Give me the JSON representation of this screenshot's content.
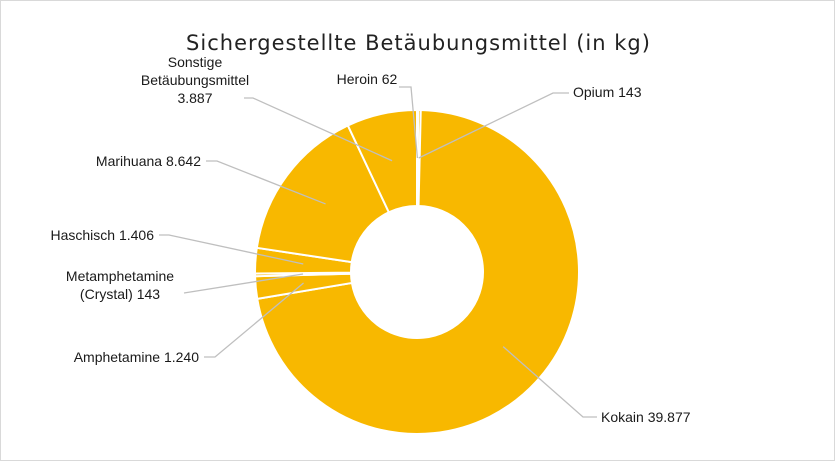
{
  "chart_data": {
    "type": "pie",
    "variant": "donut",
    "title": "Sichergestellte Betäubungsmittel (in kg)",
    "slice_color": "#f8b800",
    "separator_color": "#ffffff",
    "leader_color": "#bfbfbf",
    "slices": [
      {
        "name": "Heroin",
        "value": 62,
        "label_lines": [
          "Heroin 62"
        ]
      },
      {
        "name": "Opium",
        "value": 143,
        "label_lines": [
          "Opium 143"
        ]
      },
      {
        "name": "Kokain",
        "value": 39877,
        "label_lines": [
          "Kokain 39.877"
        ]
      },
      {
        "name": "Amphetamine",
        "value": 1240,
        "label_lines": [
          "Amphetamine 1.240"
        ]
      },
      {
        "name": "Metamphetamine (Crystal)",
        "value": 143,
        "label_lines": [
          "Metamphetamine",
          "(Crystal) 143"
        ]
      },
      {
        "name": "Haschisch",
        "value": 1406,
        "label_lines": [
          "Haschisch 1.406"
        ]
      },
      {
        "name": "Marihuana",
        "value": 8642,
        "label_lines": [
          "Marihuana 8.642"
        ]
      },
      {
        "name": "Sonstige Betäubungsmittel",
        "value": 3887,
        "label_lines": [
          "Sonstige",
          "Betäubungsmittel",
          "3.887"
        ]
      }
    ],
    "legend": "none",
    "data_labels": "outside with leader lines"
  }
}
